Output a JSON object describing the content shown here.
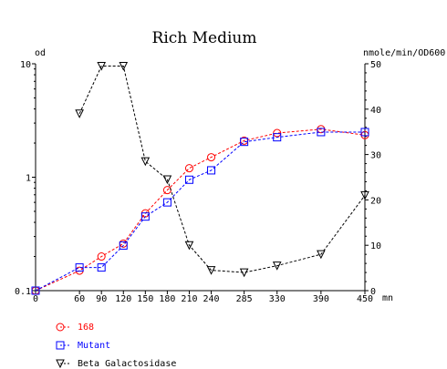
{
  "chart_data": {
    "type": "line",
    "title": "Rich Medium",
    "x": [
      0,
      60,
      90,
      120,
      150,
      180,
      210,
      240,
      285,
      330,
      390,
      450
    ],
    "x_tick_labels": [
      "0",
      "60",
      "90",
      "120",
      "150",
      "180",
      "210",
      "240",
      "285",
      "330",
      "390",
      "450"
    ],
    "x_unit": "mn",
    "xlim": [
      0,
      450
    ],
    "left_axis": {
      "unit": "od",
      "scale": "log",
      "ylim": [
        0.1,
        10
      ],
      "ticks": [
        0.1,
        1,
        10
      ],
      "tick_labels": [
        "0.1",
        "1",
        "10"
      ]
    },
    "right_axis": {
      "unit": "nmole/min/OD600",
      "scale": "linear",
      "ylim": [
        0,
        50
      ],
      "ticks": [
        0,
        10,
        20,
        30,
        40,
        50
      ],
      "tick_labels": [
        "0",
        "10",
        "20",
        "30",
        "40",
        "50"
      ]
    },
    "grid": false,
    "legend_position": "bottom-left",
    "series": [
      {
        "name": "168",
        "axis": "left",
        "marker": "circle",
        "color": "#ff0000",
        "x": [
          0,
          60,
          90,
          120,
          150,
          180,
          210,
          240,
          285,
          330,
          390,
          450
        ],
        "y": [
          0.1,
          0.15,
          0.2,
          0.26,
          0.48,
          0.77,
          1.2,
          1.5,
          2.1,
          2.45,
          2.65,
          2.35
        ]
      },
      {
        "name": "Mutant",
        "axis": "left",
        "marker": "square",
        "color": "#0000ff",
        "x": [
          0,
          60,
          90,
          120,
          150,
          180,
          210,
          240,
          285,
          330,
          390,
          450
        ],
        "y": [
          0.1,
          0.16,
          0.16,
          0.25,
          0.45,
          0.6,
          0.95,
          1.15,
          2.05,
          2.25,
          2.5,
          2.5
        ]
      },
      {
        "name": "Beta Galactosidase",
        "axis": "right",
        "marker": "triangle-down",
        "color": "#000000",
        "x": [
          60,
          90,
          120,
          150,
          180,
          210,
          240,
          285,
          330,
          390,
          450
        ],
        "y": [
          39,
          49.5,
          49.5,
          28.5,
          24.5,
          10,
          4.5,
          4,
          5.5,
          8,
          21
        ]
      }
    ]
  }
}
